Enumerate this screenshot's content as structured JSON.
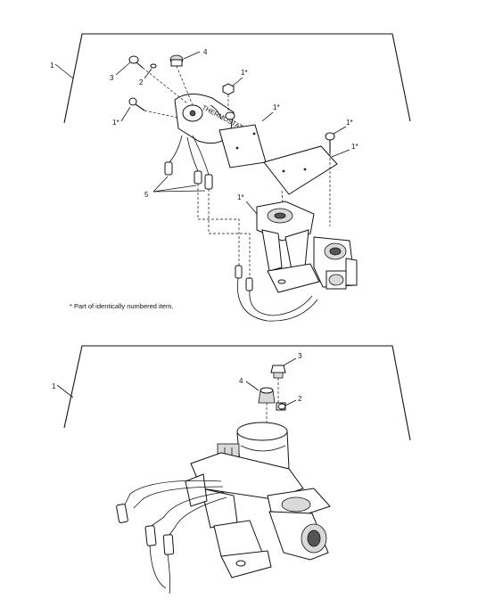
{
  "upper_view": {
    "callouts": [
      {
        "id": "c1-frame",
        "text": "1"
      },
      {
        "id": "c3",
        "text": "3"
      },
      {
        "id": "c2",
        "text": "2"
      },
      {
        "id": "c4",
        "text": "4"
      },
      {
        "id": "c1s-nut",
        "text": "1*"
      },
      {
        "id": "c1s-screw-left",
        "text": "1*"
      },
      {
        "id": "c1s-cover",
        "text": "1*"
      },
      {
        "id": "c1s-screw-right",
        "text": "1*"
      },
      {
        "id": "c1s-plate",
        "text": "1*"
      },
      {
        "id": "c5",
        "text": "5"
      },
      {
        "id": "c1s-valve",
        "text": "1*"
      }
    ],
    "footnote": "* Part of identically numbered item."
  },
  "lower_view": {
    "callouts": [
      {
        "id": "c1-frame",
        "text": "1"
      },
      {
        "id": "c3",
        "text": "3"
      },
      {
        "id": "c4",
        "text": "4"
      },
      {
        "id": "c2",
        "text": "2"
      }
    ]
  }
}
